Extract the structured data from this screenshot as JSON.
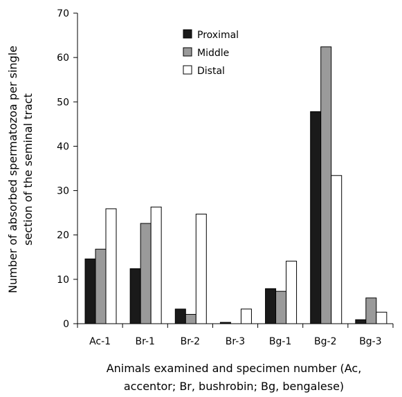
{
  "chart_data": {
    "type": "bar",
    "categories": [
      "Ac-1",
      "Br-1",
      "Br-2",
      "Br-3",
      "Bg-1",
      "Bg-2",
      "Bg-3"
    ],
    "series": [
      {
        "name": "Proximal",
        "color": "#1a1a1a",
        "values": [
          14.6,
          12.4,
          3.3,
          0.3,
          7.9,
          47.8,
          0.9
        ]
      },
      {
        "name": "Middle",
        "color": "#9a9a9a",
        "values": [
          16.8,
          22.6,
          2.1,
          0.0,
          7.3,
          62.4,
          5.8
        ]
      },
      {
        "name": "Distal",
        "color": "#ffffff",
        "values": [
          25.9,
          26.3,
          24.7,
          3.3,
          14.1,
          33.4,
          2.6
        ]
      }
    ],
    "ylim": [
      0,
      70
    ],
    "yticks": [
      0,
      10,
      20,
      30,
      40,
      50,
      60,
      70
    ],
    "ylabel_lines": [
      "Number of absorbed spermatozoa per single",
      "section of the seminal tract"
    ],
    "xlabel_lines": [
      "Animals examined and specimen number (Ac,",
      "accentor; Br, bushrobin; Bg, bengalese)"
    ],
    "legend_position": "top-center",
    "grid": false
  }
}
